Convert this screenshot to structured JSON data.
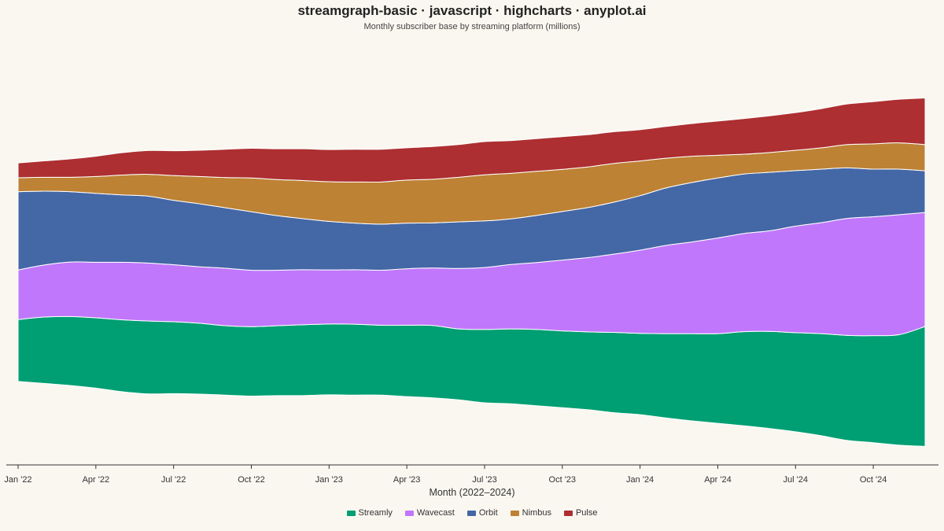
{
  "chart_data": {
    "type": "area",
    "stacking": "streamgraph",
    "title": "streamgraph-basic · javascript · highcharts · anyplot.ai",
    "subtitle": "Monthly subscriber base by streaming platform (millions)",
    "xlabel": "Month (2022–2024)",
    "ylabel": "",
    "x_tick_labels": [
      "Jan '22",
      "Apr '22",
      "Jul '22",
      "Oct '22",
      "Jan '23",
      "Apr '23",
      "Jul '23",
      "Oct '23",
      "Jan '24",
      "Apr '24",
      "Jul '24",
      "Oct '24"
    ],
    "x": [
      "2022-01",
      "2022-02",
      "2022-03",
      "2022-04",
      "2022-05",
      "2022-06",
      "2022-07",
      "2022-08",
      "2022-09",
      "2022-10",
      "2022-11",
      "2022-12",
      "2023-01",
      "2023-02",
      "2023-03",
      "2023-04",
      "2023-05",
      "2023-06",
      "2023-07",
      "2023-08",
      "2023-09",
      "2023-10",
      "2023-11",
      "2023-12",
      "2024-01",
      "2024-02",
      "2024-03",
      "2024-04",
      "2024-05",
      "2024-06",
      "2024-07",
      "2024-08",
      "2024-09",
      "2024-10",
      "2024-11",
      "2024-12"
    ],
    "grid": false,
    "legend_position": "bottom-center",
    "series": [
      {
        "name": "Streamly",
        "color": "#009e73",
        "values": [
          12.5,
          13.4,
          13.9,
          14.2,
          14.5,
          14.7,
          14.5,
          14.3,
          14.0,
          14.0,
          14.1,
          14.3,
          14.3,
          14.3,
          14.1,
          14.4,
          14.6,
          14.3,
          14.8,
          15.1,
          15.4,
          15.5,
          15.7,
          16.2,
          16.4,
          17.0,
          17.6,
          18.1,
          19.0,
          19.6,
          20.0,
          20.6,
          21.2,
          21.6,
          22.3,
          24.2
        ]
      },
      {
        "name": "Wavecast",
        "color": "#c077fb",
        "values": [
          10.0,
          10.5,
          11.0,
          11.2,
          11.6,
          11.7,
          11.5,
          11.4,
          11.6,
          11.4,
          11.2,
          11.1,
          10.9,
          11.0,
          11.1,
          11.4,
          11.6,
          12.2,
          12.5,
          13.0,
          13.5,
          14.3,
          15.0,
          15.8,
          16.8,
          17.8,
          18.5,
          19.3,
          19.8,
          20.3,
          21.5,
          22.4,
          23.6,
          24.0,
          24.2,
          23.0
        ]
      },
      {
        "name": "Orbit",
        "color": "#4467a6",
        "values": [
          15.8,
          14.9,
          14.2,
          13.9,
          13.6,
          13.5,
          13.0,
          12.7,
          12.2,
          11.8,
          11.0,
          10.3,
          9.8,
          9.4,
          9.3,
          9.2,
          9.1,
          9.4,
          9.4,
          9.2,
          9.5,
          9.8,
          10.1,
          10.5,
          11.0,
          11.6,
          12.0,
          12.1,
          12.0,
          11.8,
          11.2,
          10.8,
          10.2,
          9.6,
          9.2,
          8.4
        ]
      },
      {
        "name": "Nimbus",
        "color": "#bd8234",
        "values": [
          2.8,
          2.8,
          2.9,
          3.4,
          4.0,
          4.4,
          5.0,
          5.5,
          6.1,
          6.8,
          7.3,
          7.7,
          8.0,
          8.3,
          8.5,
          8.7,
          8.8,
          9.0,
          9.3,
          9.2,
          8.9,
          8.5,
          8.2,
          7.8,
          7.0,
          6.0,
          5.3,
          4.6,
          4.0,
          4.0,
          4.1,
          4.3,
          4.7,
          5.1,
          5.3,
          5.3
        ]
      },
      {
        "name": "Pulse",
        "color": "#ad2f31",
        "values": [
          3.0,
          3.3,
          3.7,
          4.1,
          4.5,
          4.8,
          5.0,
          5.3,
          5.7,
          6.0,
          6.2,
          6.4,
          6.5,
          6.6,
          6.6,
          6.5,
          6.6,
          6.6,
          6.7,
          6.6,
          6.6,
          6.6,
          6.5,
          6.4,
          6.3,
          6.4,
          6.6,
          6.9,
          7.2,
          7.4,
          7.6,
          7.9,
          8.2,
          8.5,
          8.8,
          9.4
        ]
      }
    ]
  }
}
